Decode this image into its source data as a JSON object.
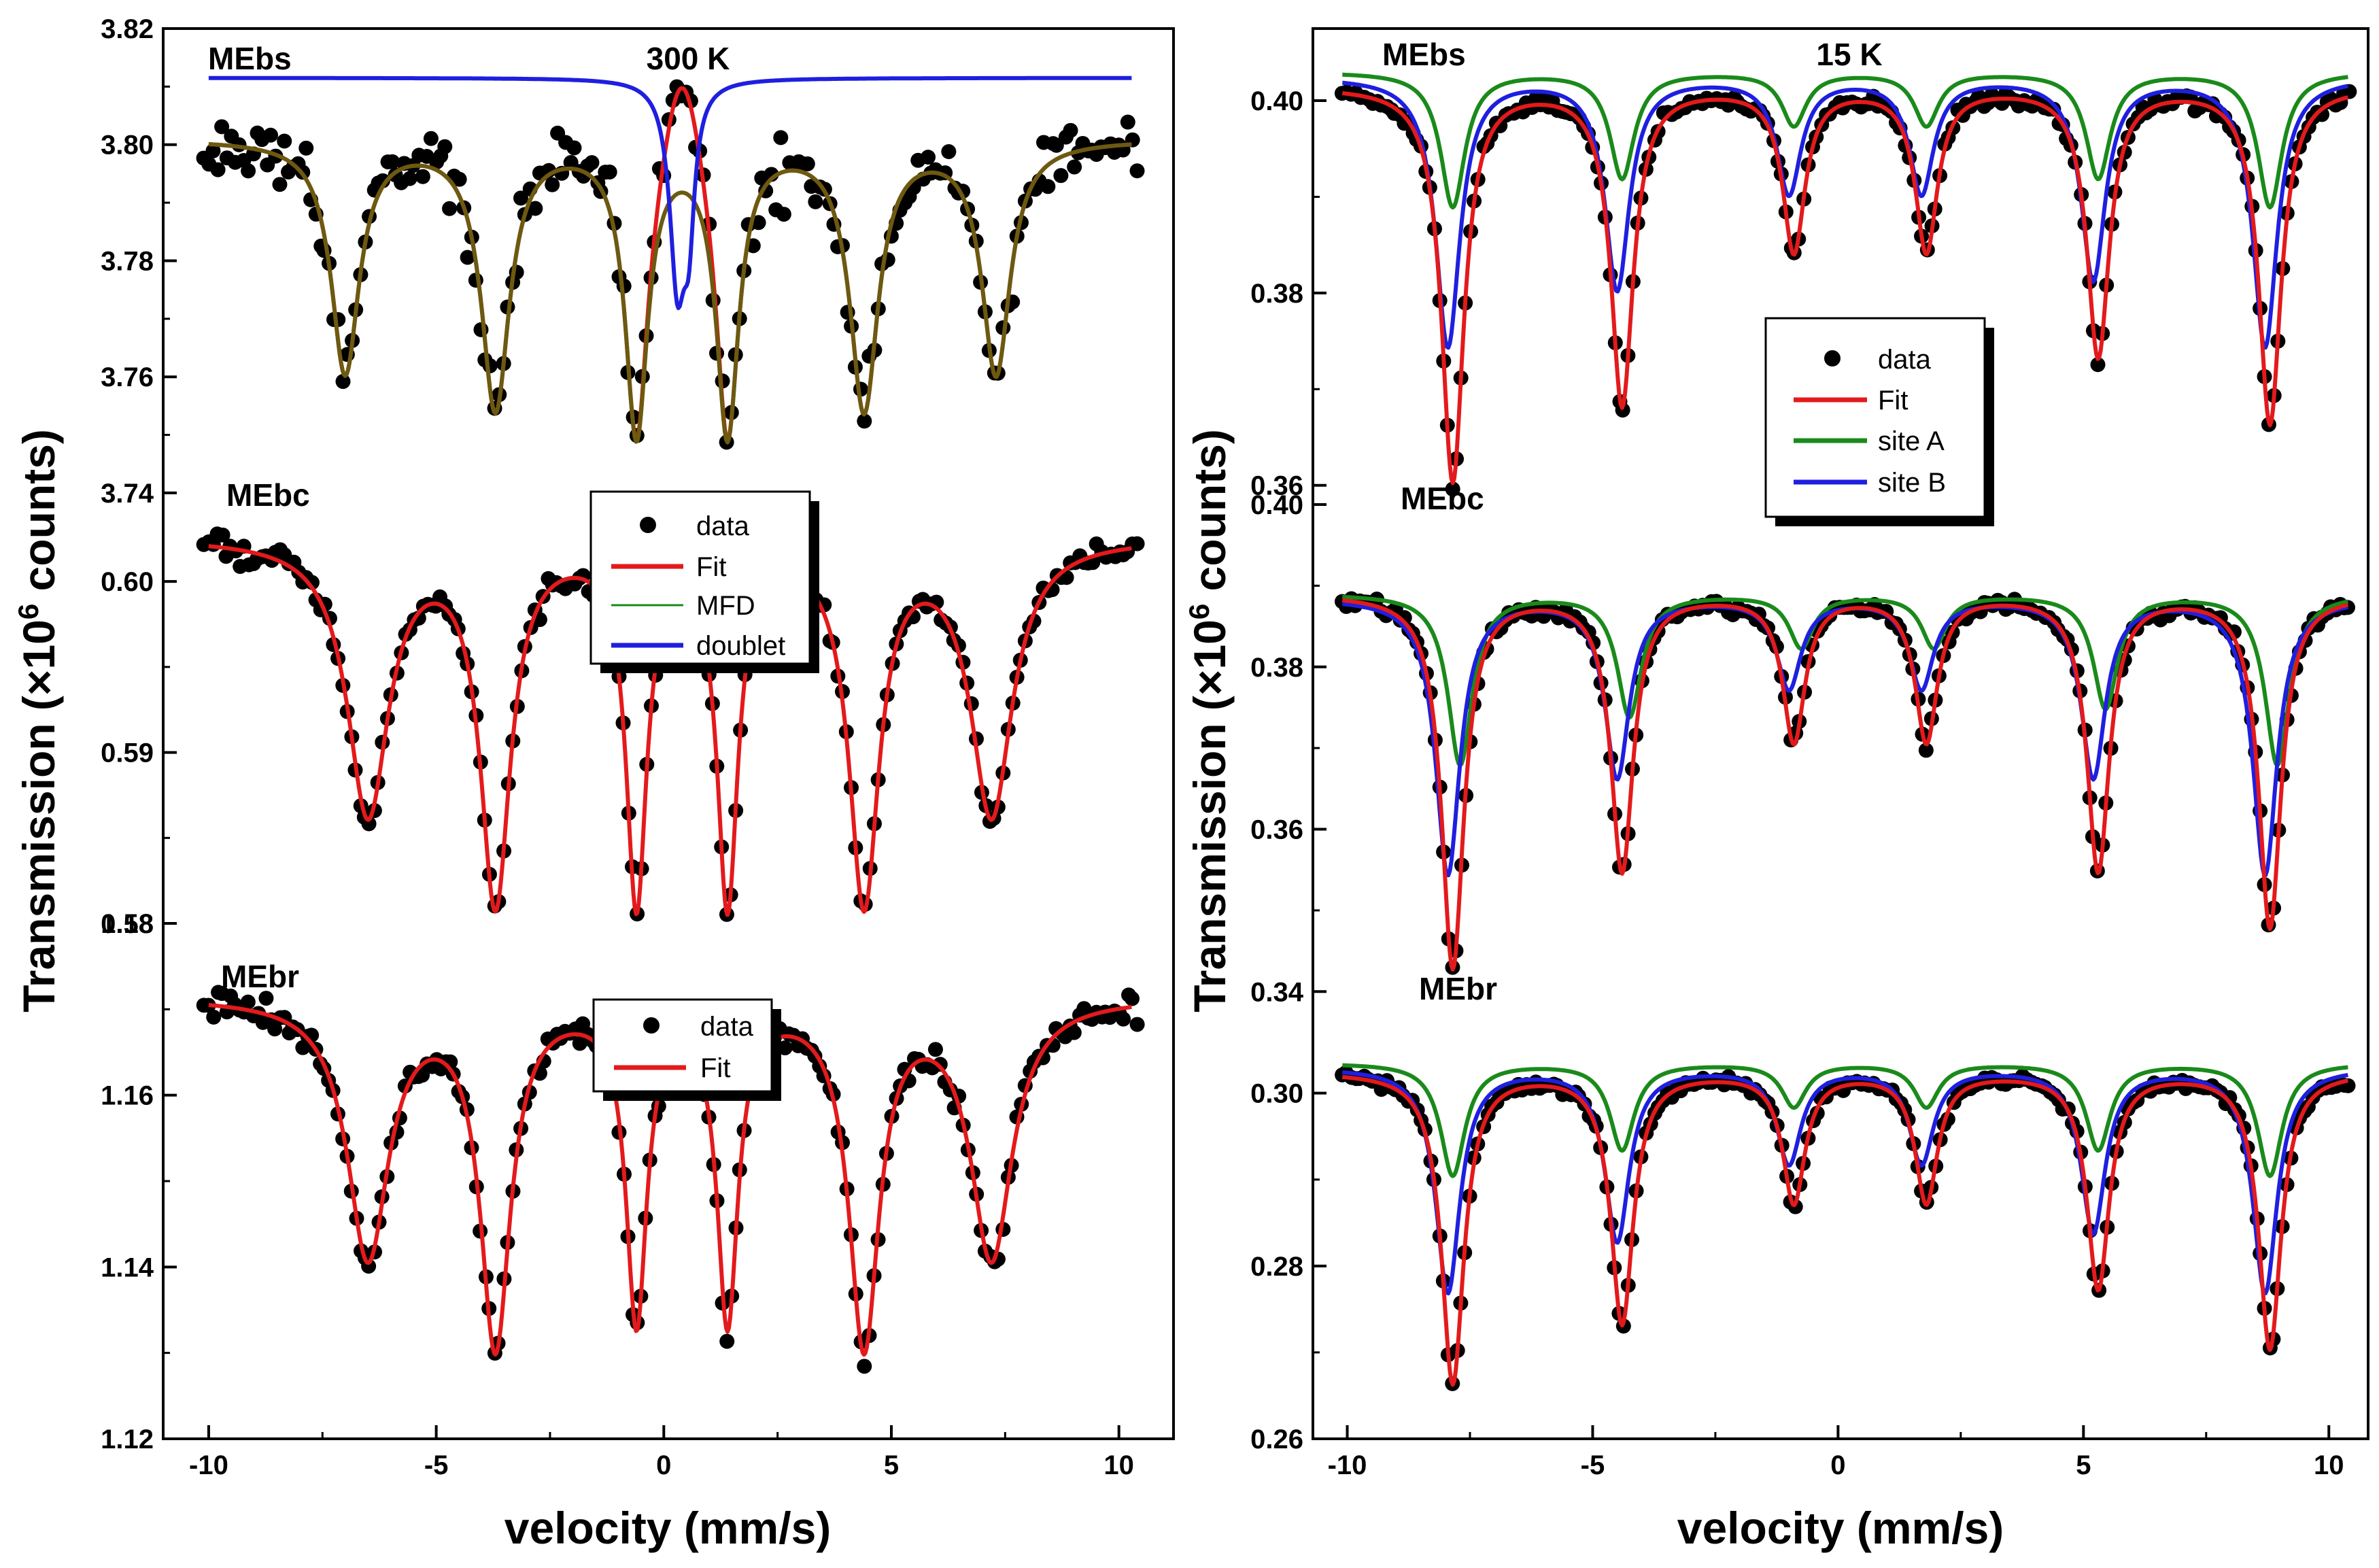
{
  "chart_data": [
    {
      "type": "line",
      "id": "left",
      "title": "",
      "temperature_label": "300 K",
      "xlabel": "velocity (mm/s)",
      "ylabel": "Transmission (×10⁶ counts)",
      "ylabel_parts": {
        "main": "Transmission (×10",
        "superscript": "6",
        "end": " counts)"
      },
      "xlim": [
        -11,
        11.2
      ],
      "x_ticks": [
        -10,
        -5,
        0,
        5,
        10
      ],
      "x_tick_labels": [
        "-10",
        "-5",
        "0",
        "5",
        "10"
      ],
      "panels": [
        {
          "label": "MEbs",
          "ylim": [
            3.738,
            3.82
          ],
          "y_ticks": [
            3.74,
            3.76,
            3.78,
            3.8,
            3.82
          ],
          "y_tick_labels": [
            "3.74",
            "3.76",
            "3.78",
            "3.80",
            "3.82"
          ],
          "model": {
            "baseline": 3.801,
            "lines": [
              [
                -7.0,
                0.04,
                0.75
              ],
              [
                -3.7,
                0.046,
                0.75
              ],
              [
                -0.6,
                0.05,
                0.6
              ],
              [
                1.4,
                0.05,
                0.6
              ],
              [
                4.4,
                0.046,
                0.75
              ],
              [
                7.3,
                0.04,
                0.75
              ]
            ]
          },
          "doublet": {
            "baseline": 3.8115,
            "lines": [
              [
                0.3,
                0.034,
                0.42
              ],
              [
                0.55,
                0.02,
                0.3
              ]
            ]
          },
          "series": [
            {
              "name": "data",
              "color": "#000000",
              "style": "points"
            },
            {
              "name": "Fit",
              "color": "#e31a1c",
              "style": "line"
            },
            {
              "name": "MFD",
              "color": "#1a8a1a",
              "style": "line"
            },
            {
              "name": "doublet",
              "color": "#1f1fe0",
              "style": "line"
            }
          ],
          "legend": [
            "data",
            "Fit",
            "MFD",
            "doublet"
          ]
        },
        {
          "label": "MEbc",
          "ylim": [
            0.58,
            0.6045
          ],
          "y_ticks": [
            0.58,
            0.59,
            0.6
          ],
          "y_tick_labels": [
            "0.58",
            "0.59",
            "0.60"
          ],
          "model": {
            "baseline": 0.6026,
            "lines": [
              [
                -6.5,
                0.016,
                1.1
              ],
              [
                -3.7,
                0.021,
                0.8
              ],
              [
                -0.6,
                0.021,
                0.55
              ],
              [
                1.4,
                0.021,
                0.55
              ],
              [
                4.4,
                0.021,
                0.8
              ],
              [
                7.2,
                0.016,
                1.1
              ]
            ]
          },
          "series": [
            {
              "name": "data",
              "color": "#000000",
              "style": "points"
            },
            {
              "name": "Fit",
              "color": "#e31a1c",
              "style": "line"
            }
          ]
        },
        {
          "label": "MEbr",
          "ylim": [
            1.12,
            1.18
          ],
          "y_ticks": [
            1.12,
            1.14,
            1.16,
            1.18
          ],
          "y_tick_labels": [
            "1.12",
            "1.14",
            "1.16",
            "1.18"
          ],
          "model": {
            "baseline": 1.1715,
            "lines": [
              [
                -6.5,
                0.03,
                1.1
              ],
              [
                -3.7,
                0.04,
                0.8
              ],
              [
                -0.6,
                0.037,
                0.55
              ],
              [
                1.4,
                0.037,
                0.55
              ],
              [
                4.4,
                0.04,
                0.8
              ],
              [
                7.2,
                0.03,
                1.1
              ]
            ]
          },
          "series": [
            {
              "name": "data",
              "color": "#000000",
              "style": "points"
            },
            {
              "name": "Fit",
              "color": "#e31a1c",
              "style": "line"
            }
          ],
          "legend": [
            "data",
            "Fit"
          ]
        }
      ]
    },
    {
      "type": "line",
      "id": "right",
      "title": "",
      "temperature_label": "15 K",
      "xlabel": "velocity (mm/s)",
      "ylabel": "Transmission (×10⁶ counts)",
      "ylabel_parts": {
        "main": "Transmission (×10",
        "superscript": "6",
        "end": " counts)"
      },
      "xlim": [
        -10.7,
        10.8
      ],
      "x_ticks": [
        -10,
        -5,
        0,
        5,
        10
      ],
      "x_tick_labels": [
        "-10",
        "-5",
        "0",
        "5",
        "10"
      ],
      "line_positions": [
        -7.85,
        -4.4,
        -0.9,
        1.8,
        5.3,
        8.8
      ],
      "panels": [
        {
          "label": "MEbs",
          "ylim": [
            0.358,
            0.4075
          ],
          "y_ticks": [
            0.36,
            0.38,
            0.4
          ],
          "y_tick_labels": [
            "0.36",
            "0.38",
            "0.40"
          ],
          "baseline": 0.4015,
          "total_depths": [
            0.041,
            0.033,
            0.017,
            0.017,
            0.028,
            0.035
          ],
          "siteA": {
            "baseline": 0.403,
            "depths": [
              0.014,
              0.011,
              0.0055,
              0.0055,
              0.011,
              0.014
            ],
            "shift": 0.0
          },
          "siteB": {
            "baseline": 0.4025,
            "depths": [
              0.028,
              0.022,
              0.012,
              0.012,
              0.021,
              0.028
            ],
            "shift": -0.1
          },
          "series": [
            {
              "name": "data",
              "color": "#000000",
              "style": "points"
            },
            {
              "name": "Fit",
              "color": "#e31a1c",
              "style": "line"
            },
            {
              "name": "site A",
              "color": "#1a8a1a",
              "style": "line"
            },
            {
              "name": "site B",
              "color": "#1f1fe0",
              "style": "line"
            }
          ],
          "legend": [
            "data",
            "Fit",
            "site A",
            "site B"
          ]
        },
        {
          "label": "MEbc",
          "ylim": [
            0.336,
            0.4
          ],
          "y_ticks": [
            0.34,
            0.36,
            0.38,
            0.4
          ],
          "y_tick_labels": [
            "0.34",
            "0.36",
            "0.38",
            "0.40"
          ],
          "baseline": 0.389,
          "total_depths": [
            0.046,
            0.034,
            0.018,
            0.018,
            0.034,
            0.041
          ],
          "siteA": {
            "baseline": 0.389,
            "depths": [
              0.021,
              0.015,
              0.0065,
              0.0065,
              0.014,
              0.021
            ],
            "shift": 0.15
          },
          "siteB": {
            "baseline": 0.3885,
            "depths": [
              0.034,
              0.022,
              0.011,
              0.011,
              0.022,
              0.034
            ],
            "shift": -0.1
          },
          "series": [
            {
              "name": "data",
              "color": "#000000",
              "style": "points"
            },
            {
              "name": "Fit",
              "color": "#e31a1c",
              "style": "line"
            },
            {
              "name": "site A",
              "color": "#1a8a1a",
              "style": "line"
            },
            {
              "name": "site B",
              "color": "#1f1fe0",
              "style": "line"
            }
          ]
        },
        {
          "label": "MEbr",
          "ylim": [
            0.26,
            0.308
          ],
          "y_ticks": [
            0.26,
            0.28,
            0.3
          ],
          "y_tick_labels": [
            "0.26",
            "0.28",
            "0.30"
          ],
          "baseline": 0.3025,
          "total_depths": [
            0.036,
            0.029,
            0.015,
            0.015,
            0.025,
            0.032
          ],
          "siteA": {
            "baseline": 0.3035,
            "depths": [
              0.013,
              0.01,
              0.005,
              0.005,
              0.01,
              0.013
            ],
            "shift": 0.0
          },
          "siteB": {
            "baseline": 0.303,
            "depths": [
              0.026,
              0.02,
              0.011,
              0.011,
              0.019,
              0.026
            ],
            "shift": -0.1
          },
          "series": [
            {
              "name": "data",
              "color": "#000000",
              "style": "points"
            },
            {
              "name": "Fit",
              "color": "#e31a1c",
              "style": "line"
            },
            {
              "name": "site A",
              "color": "#1a8a1a",
              "style": "line"
            },
            {
              "name": "site B",
              "color": "#1f1fe0",
              "style": "line"
            }
          ]
        }
      ]
    }
  ]
}
